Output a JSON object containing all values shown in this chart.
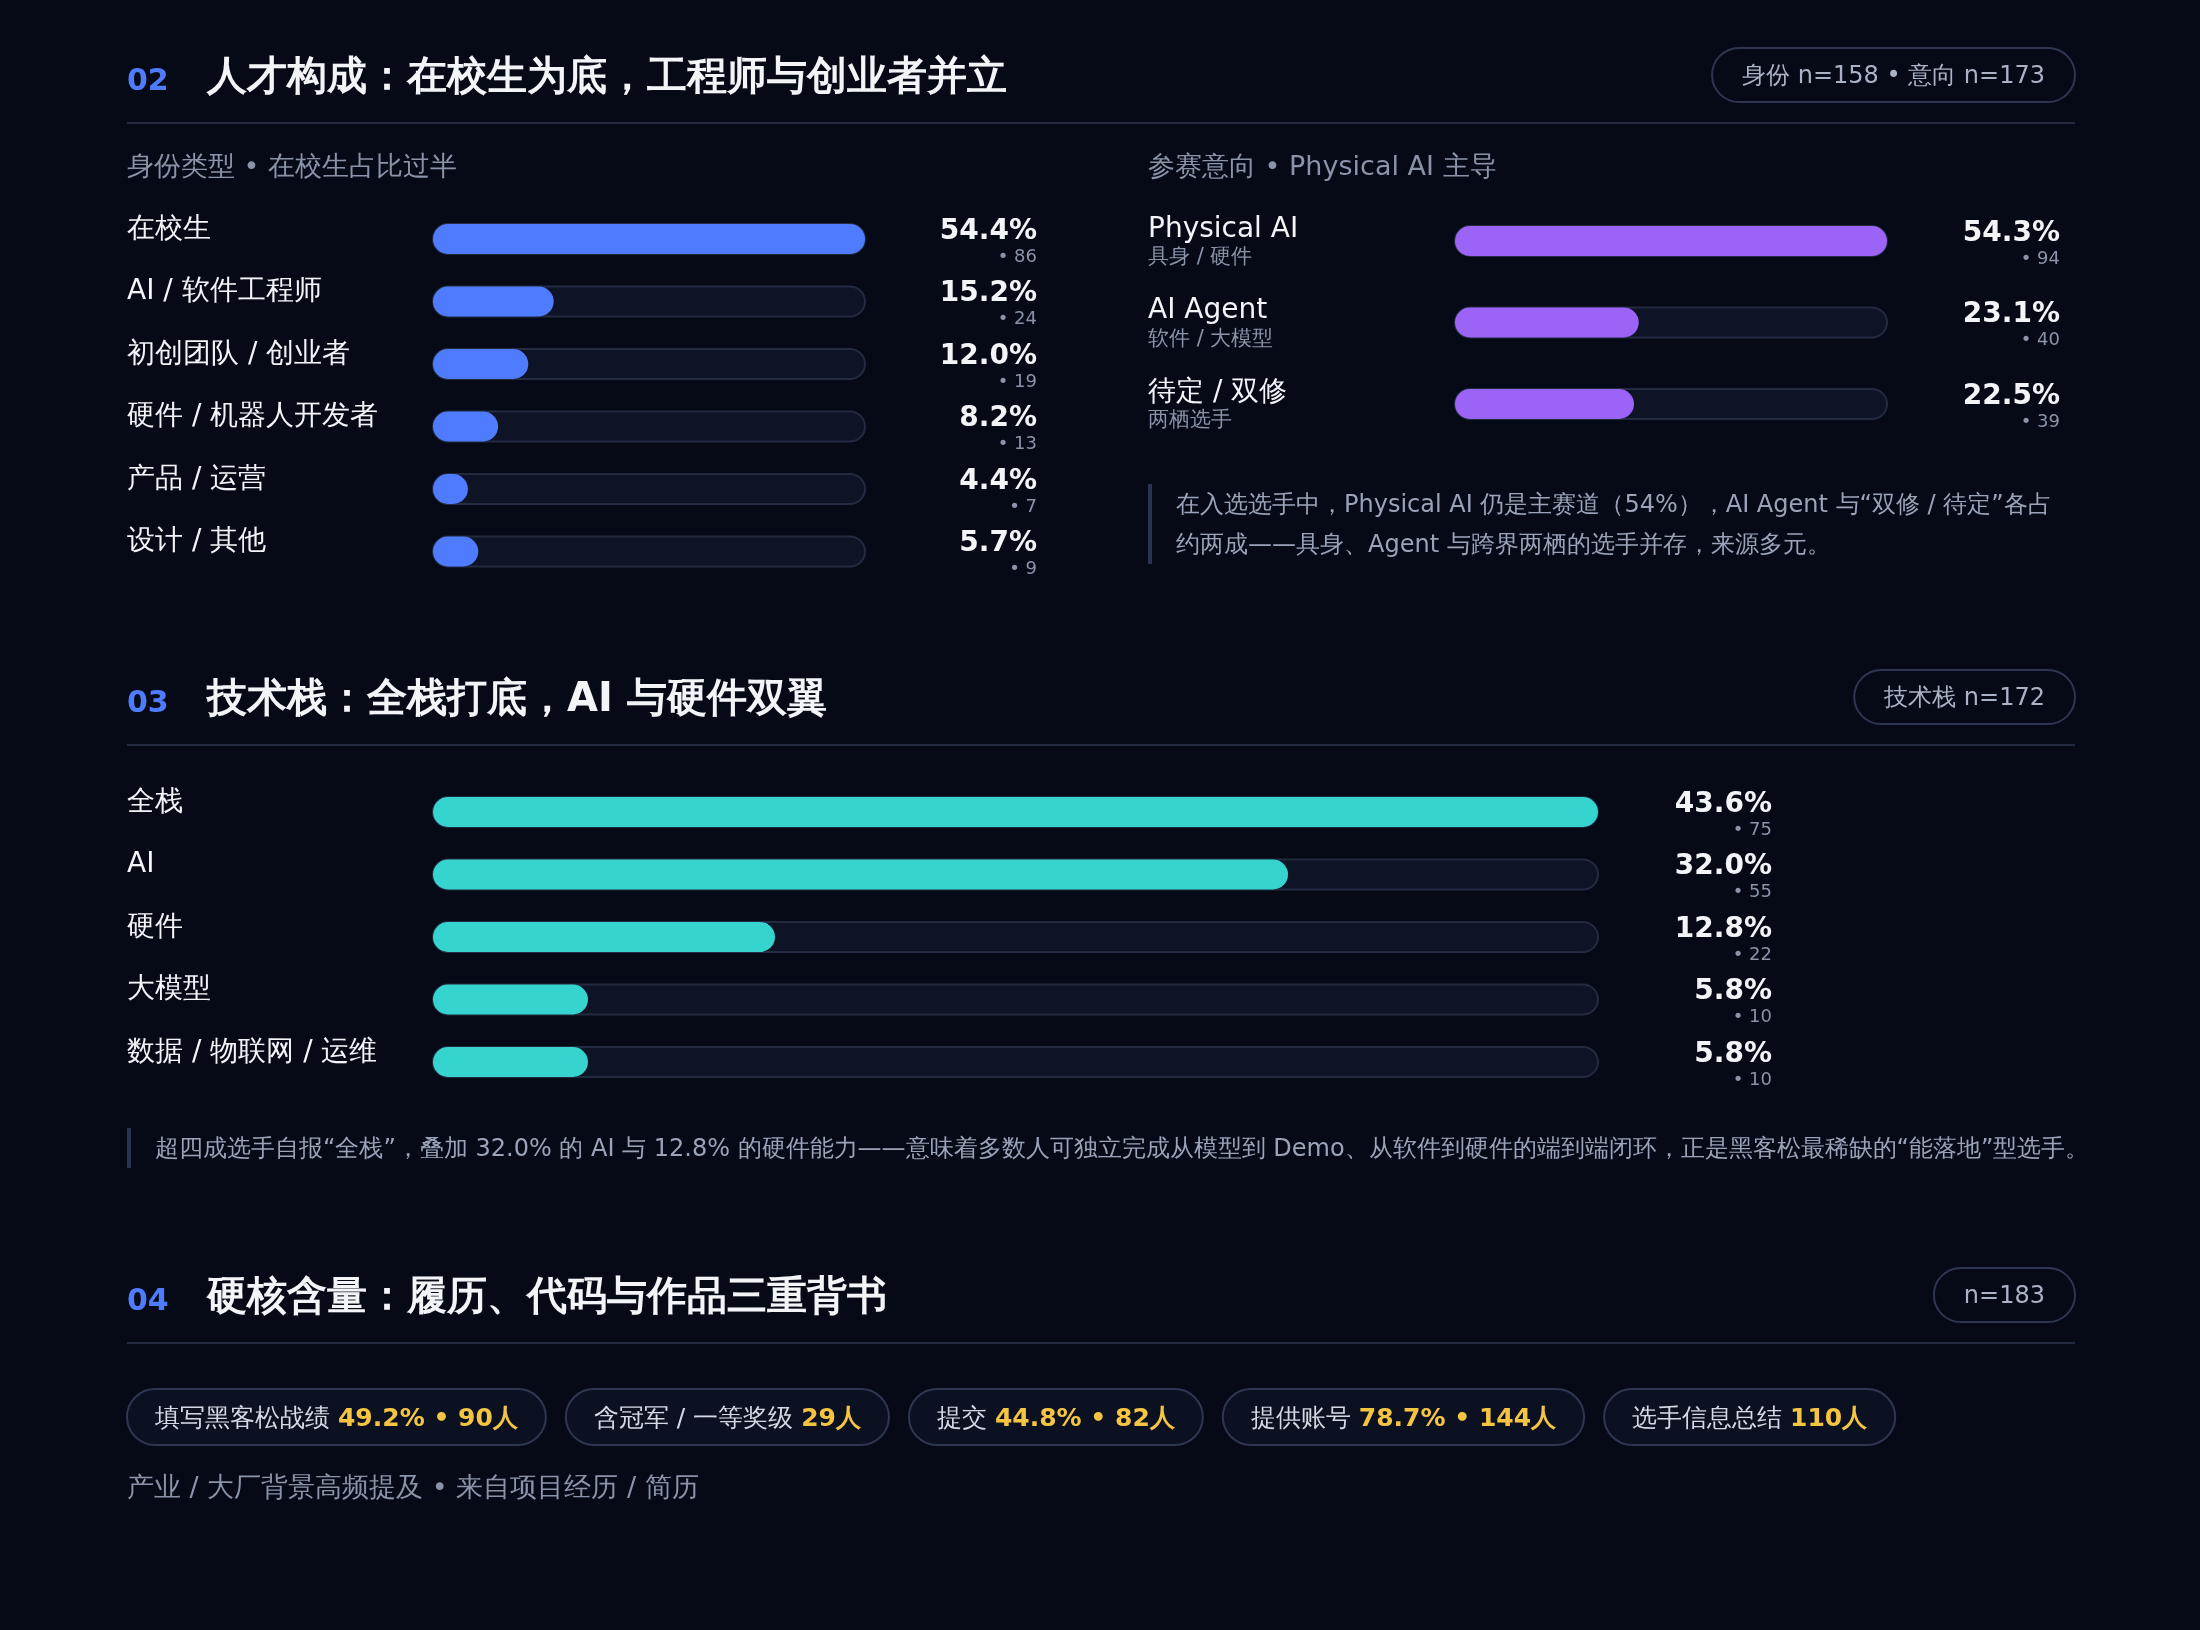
{
  "chart_data": [
    {
      "type": "bar",
      "orientation": "horizontal",
      "title": "02 人才构成：在校生为底，工程师与创业者并立",
      "subtitle": "身份类型 • 在校生占比过半",
      "annotations": [
        "身份 n=158 • 意向 n=173"
      ],
      "categories": [
        "在校生",
        "AI / 软件工程师",
        "初创团队 / 创业者",
        "硬件 / 机器人开发者",
        "产品 / 运营",
        "设计 / 其他"
      ],
      "values": [
        54.4,
        15.2,
        12.0,
        8.2,
        4.4,
        5.7
      ],
      "value_labels": [
        "54.4%\n• 86",
        "15.2%\n• 24",
        "12.0%\n• 19",
        "8.2%\n• 13",
        "4.4%\n• 7",
        "5.7%\n• 9"
      ],
      "color": "#4f7cff",
      "xlim": [
        0,
        54.4
      ]
    },
    {
      "type": "bar",
      "orientation": "horizontal",
      "subtitle": "参赛意向 • Physical AI 主导",
      "categories": [
        "Physical AI",
        "AI Agent",
        "待定 / 双修"
      ],
      "values": [
        54.3,
        23.1,
        22.5
      ],
      "value_labels": [
        "54.3%\n• 94",
        "23.1%\n• 40",
        "22.5%\n• 39"
      ],
      "color": "#9b63f6",
      "xlim": [
        0,
        54.3
      ],
      "annotations": [
        "在入选选手中，Physical AI 仍是主赛道（54%），AI Agent 与“双修 / 待定”各占约两成——具身、Agent 与跨界两栖的选手并存，来源多元。",
        "具身 / 硬件",
        "软件 / 大模型",
        "两栖选手"
      ]
    },
    {
      "type": "bar",
      "orientation": "horizontal",
      "title": "03 技术栈：全栈打底，AI 与硬件双翼",
      "categories": [
        "全栈",
        "AI",
        "硬件",
        "大模型",
        "数据 / 物联网 / 运维"
      ],
      "values": [
        43.6,
        32.0,
        12.8,
        5.8,
        5.8
      ],
      "value_labels": [
        "43.6%\n• 75",
        "32.0%\n• 55",
        "12.8%\n• 22",
        "5.8%\n• 10",
        "5.8%\n• 10"
      ],
      "color": "#35d4cf",
      "xlim": [
        0,
        43.6
      ],
      "annotations": [
        "技术栈 n=172",
        "超四成选手自报“全栈”，叠加 32.0% 的 AI 与 12.8% 的硬件能力——意味着多数人可独立完成从模型到 Demo、从软件到硬件的端到端闭环，正是黑客松最稀缺的“能落地”型选手。"
      ]
    },
    {
      "type": "other",
      "title": "04 硬核含量：履历、代码与作品三重背书",
      "annotations": [
        "n=183",
        "填写黑客松战绩 49.2% • 90人",
        "含冠军 / 一等奖级 29人",
        "提交 44.8% • 82人",
        "提供账号 78.7% • 144人",
        "选手信息总结 110人",
        "产业 / 大厂背景高频提及 • 来自项目经历 / 简历"
      ]
    }
  ]
}
